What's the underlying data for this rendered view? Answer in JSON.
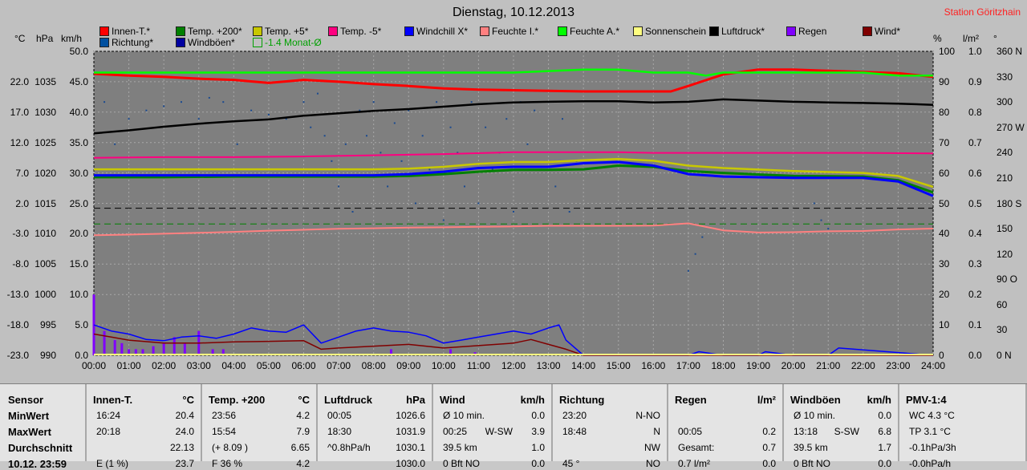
{
  "chart_data": {
    "type": "line",
    "title": "Dienstag, 10.12.2013",
    "station": "Station Göritzhain",
    "x_ticks": [
      "00:00",
      "01:00",
      "02:00",
      "03:00",
      "04:00",
      "05:00",
      "06:00",
      "07:00",
      "08:00",
      "09:00",
      "10:00",
      "11:00",
      "12:00",
      "13:00",
      "14:00",
      "15:00",
      "16:00",
      "17:00",
      "18:00",
      "19:00",
      "20:00",
      "21:00",
      "22:00",
      "23:00",
      "24:00"
    ],
    "axes": {
      "temp": {
        "unit": "°C",
        "range": [
          -23,
          27
        ],
        "ticks": [
          "22.0",
          "17.0",
          "12.0",
          "7.0",
          "2.0",
          "-3.0",
          "-8.0",
          "-13.0",
          "-18.0",
          "-23.0"
        ]
      },
      "pressure": {
        "unit": "hPa",
        "range": [
          990,
          1040
        ],
        "ticks": [
          "1035",
          "1030",
          "1025",
          "1020",
          "1015",
          "1010",
          "1005",
          "1000",
          "995",
          "990"
        ]
      },
      "wind": {
        "unit": "km/h",
        "range": [
          0,
          50
        ],
        "ticks": [
          "50.0",
          "45.0",
          "40.0",
          "35.0",
          "30.0",
          "25.0",
          "20.0",
          "15.0",
          "10.0",
          "5.0",
          "0.0"
        ]
      },
      "humidity": {
        "unit": "%",
        "range": [
          0,
          100
        ],
        "ticks": [
          "100",
          "90",
          "80",
          "70",
          "60",
          "50",
          "40",
          "30",
          "20",
          "10",
          "0"
        ]
      },
      "rain": {
        "unit": "l/m²",
        "range": [
          0,
          1
        ],
        "ticks": [
          "1.0",
          "0.9",
          "0.8",
          "0.7",
          "0.6",
          "0.5",
          "0.4",
          "0.3",
          "0.2",
          "0.1",
          "0.0"
        ]
      },
      "direction": {
        "unit": "°",
        "range": [
          0,
          360
        ],
        "ticks": [
          "360 N",
          "330",
          "300",
          "270 W",
          "240",
          "210",
          "180 S",
          "150",
          "120",
          "90 O",
          "60",
          "30",
          "0 N"
        ]
      }
    },
    "legend": [
      {
        "name": "Innen-T.*",
        "color": "#ff0000"
      },
      {
        "name": "Temp. +200*",
        "color": "#008000"
      },
      {
        "name": "Temp. +5*",
        "color": "#c8c800"
      },
      {
        "name": "Temp. -5*",
        "color": "#ff0080"
      },
      {
        "name": "Windchill X*",
        "color": "#0000ff"
      },
      {
        "name": "Feuchte I.*",
        "color": "#ff8080"
      },
      {
        "name": "Feuchte A.*",
        "color": "#00ff00"
      },
      {
        "name": "Sonnenschein",
        "color": "#ffff80"
      },
      {
        "name": "Luftdruck*",
        "color": "#000000"
      },
      {
        "name": "Regen",
        "color": "#8000ff"
      },
      {
        "name": "Wind*",
        "color": "#800000"
      },
      {
        "name": "Richtung*",
        "color": "#0050a0"
      },
      {
        "name": "Windböen*",
        "color": "#0000a0"
      }
    ],
    "legend_note": "-1.4 Monat-Ø",
    "reference_lines": [
      {
        "axis": "temp",
        "value": 1.2,
        "color": "#000000"
      },
      {
        "axis": "temp",
        "value": -1.4,
        "color": "#008000"
      }
    ],
    "series": [
      {
        "name": "Innen-T.*",
        "axis": "temp",
        "color": "#ff0000",
        "x": [
          0,
          1,
          2,
          3,
          4,
          5,
          6,
          7,
          8,
          9,
          10,
          11,
          12,
          13,
          14,
          15,
          16,
          16.5,
          17,
          18,
          19,
          20,
          21,
          22,
          23,
          24
        ],
        "values": [
          23.3,
          23.0,
          22.8,
          22.5,
          22.3,
          21.8,
          22.3,
          22.0,
          21.6,
          21.3,
          20.9,
          20.7,
          20.6,
          20.5,
          20.4,
          20.4,
          20.4,
          20.4,
          21.3,
          23.2,
          24.0,
          24.0,
          23.8,
          23.6,
          23.4,
          22.8
        ]
      },
      {
        "name": "Feuchte A.*",
        "axis": "humidity",
        "color": "#00ff00",
        "x": [
          0,
          2,
          4,
          6,
          8,
          10,
          12,
          14,
          15,
          16,
          17,
          17.5,
          18,
          20,
          22,
          23,
          24
        ],
        "values": [
          93,
          93,
          93,
          93,
          93,
          93,
          93,
          94,
          94,
          93,
          93,
          92,
          93,
          93,
          93,
          92,
          92
        ]
      },
      {
        "name": "Luftdruck*",
        "axis": "pressure",
        "color": "#000000",
        "x": [
          0,
          1,
          2,
          3,
          4,
          5,
          6,
          7,
          8,
          9,
          10,
          11,
          12,
          13,
          14,
          15,
          16,
          17,
          18,
          19,
          20,
          21,
          22,
          23,
          24
        ],
        "values": [
          1026.5,
          1027.0,
          1027.6,
          1028.1,
          1028.5,
          1028.8,
          1029.4,
          1029.8,
          1030.2,
          1030.5,
          1030.9,
          1031.3,
          1031.6,
          1031.7,
          1031.8,
          1031.8,
          1031.6,
          1031.7,
          1032.1,
          1031.9,
          1031.7,
          1031.6,
          1031.5,
          1031.4,
          1031.2
        ]
      },
      {
        "name": "Temp. -5*",
        "axis": "temp",
        "color": "#ff0080",
        "x": [
          0,
          2,
          4,
          6,
          8,
          10,
          12,
          14,
          15,
          16,
          18,
          20,
          22,
          24
        ],
        "values": [
          9.5,
          9.6,
          9.6,
          9.7,
          9.9,
          10.1,
          10.4,
          10.4,
          10.4,
          10.3,
          10.3,
          10.3,
          10.3,
          10.2
        ]
      },
      {
        "name": "Temp. +5*",
        "axis": "temp",
        "color": "#c8c800",
        "x": [
          0,
          2,
          4,
          6,
          8,
          9,
          10,
          11,
          12,
          13,
          14,
          15,
          16,
          17,
          18,
          20,
          22,
          23,
          24
        ],
        "values": [
          7.6,
          7.6,
          7.6,
          7.6,
          7.6,
          7.7,
          8.0,
          8.5,
          8.8,
          8.8,
          9.1,
          9.3,
          9.0,
          8.2,
          7.8,
          7.3,
          7.0,
          6.5,
          4.7
        ]
      },
      {
        "name": "Temp. +200*",
        "axis": "temp",
        "color": "#008000",
        "x": [
          0,
          2,
          4,
          6,
          8,
          9,
          10,
          11,
          12,
          13,
          14,
          15,
          16,
          17,
          18,
          20,
          22,
          23,
          24
        ],
        "values": [
          6.3,
          6.3,
          6.4,
          6.4,
          6.4,
          6.5,
          6.8,
          7.2,
          7.5,
          7.5,
          7.6,
          8.2,
          8.0,
          7.3,
          7.0,
          6.5,
          6.4,
          5.8,
          3.8
        ]
      },
      {
        "name": "Windchill X*",
        "axis": "temp",
        "color": "#0000ff",
        "x": [
          0,
          2,
          4,
          6,
          8,
          9,
          10,
          11,
          12,
          13,
          14,
          15,
          16,
          17,
          18,
          20,
          22,
          23,
          24
        ],
        "values": [
          6.6,
          6.6,
          6.6,
          6.6,
          6.6,
          6.8,
          7.2,
          7.8,
          8.0,
          8.0,
          8.6,
          8.8,
          8.2,
          6.8,
          6.4,
          6.2,
          6.2,
          5.6,
          3.2
        ]
      },
      {
        "name": "Feuchte I.*",
        "axis": "humidity",
        "color": "#ff8080",
        "x": [
          0,
          1,
          2,
          3,
          4,
          5,
          6,
          7,
          8,
          9,
          10,
          11,
          12,
          13,
          14,
          15,
          16,
          17,
          18,
          19,
          20,
          21,
          22,
          23,
          24
        ],
        "values": [
          39.5,
          39.7,
          40.0,
          40.3,
          40.6,
          41.0,
          41.3,
          41.6,
          41.8,
          42.0,
          42.1,
          42.3,
          42.4,
          42.6,
          42.6,
          42.6,
          42.7,
          43.4,
          41.1,
          40.4,
          40.5,
          40.8,
          40.9,
          41.4,
          41.7
        ]
      },
      {
        "name": "Windböen*",
        "axis": "wind",
        "color": "#0000ff",
        "x": [
          0,
          0.5,
          1,
          1.5,
          2,
          2.5,
          3,
          3.5,
          4,
          4.5,
          5,
          5.5,
          6,
          6.5,
          7,
          7.5,
          8,
          8.5,
          9,
          9.5,
          10,
          10.5,
          11,
          11.5,
          12,
          12.5,
          13,
          13.3,
          13.5,
          14,
          15,
          17,
          17.3,
          18,
          19,
          19.2,
          20,
          21,
          21.3,
          24
        ],
        "values": [
          5.0,
          4.0,
          3.5,
          2.6,
          2.4,
          3.0,
          3.2,
          2.8,
          3.5,
          4.5,
          4.0,
          3.8,
          5.0,
          2.0,
          3.0,
          4.0,
          4.5,
          4.0,
          3.8,
          3.2,
          2.0,
          2.5,
          3.0,
          3.5,
          4.0,
          3.5,
          4.5,
          5.0,
          2.5,
          0.0,
          0.0,
          0.0,
          0.6,
          0.0,
          0.0,
          0.6,
          0.0,
          0.0,
          1.2,
          0.0
        ]
      },
      {
        "name": "Wind*",
        "axis": "wind",
        "color": "#800000",
        "x": [
          0,
          0.5,
          1,
          2,
          3,
          4,
          5,
          6,
          6.5,
          7,
          8,
          9,
          10,
          11,
          12,
          12.5,
          13,
          13.5,
          14,
          24
        ],
        "values": [
          3.5,
          3.0,
          2.5,
          2.0,
          2.0,
          2.2,
          2.3,
          2.4,
          1.0,
          1.2,
          1.5,
          1.8,
          1.2,
          1.6,
          2.0,
          2.6,
          1.8,
          1.0,
          0.0,
          0.0
        ]
      }
    ],
    "rain_bars": {
      "axis": "rain",
      "x": [
        0.0,
        0.3,
        0.6,
        0.8,
        1.0,
        1.2,
        1.4,
        1.7,
        2.0,
        2.3,
        2.6,
        3.0,
        3.4,
        3.7,
        8.5,
        10.2,
        10.9
      ],
      "values": [
        0.2,
        0.08,
        0.05,
        0.04,
        0.02,
        0.02,
        0.02,
        0.03,
        0.04,
        0.06,
        0.04,
        0.08,
        0.02,
        0.02,
        0.02,
        0.02,
        0.01
      ]
    },
    "direction_points": {
      "axis": "direction",
      "x": [
        0.3,
        0.6,
        1.0,
        1.5,
        2.0,
        2.5,
        3.0,
        3.3,
        3.7,
        4.1,
        4.5,
        5.0,
        5.5,
        6.0,
        6.2,
        6.4,
        6.6,
        6.8,
        7.0,
        7.2,
        7.4,
        7.6,
        7.8,
        8.0,
        8.2,
        8.4,
        8.6,
        8.8,
        9.0,
        9.2,
        9.4,
        9.6,
        9.8,
        10.0,
        10.2,
        10.4,
        10.6,
        10.8,
        11.0,
        11.2,
        11.4,
        11.6,
        11.8,
        12.0,
        12.2,
        12.4,
        12.6,
        12.8,
        13.0,
        13.2,
        13.4,
        13.6,
        13.8,
        17.0,
        17.2,
        17.4,
        20.6,
        20.8,
        21.0
      ],
      "values": [
        300,
        250,
        280,
        290,
        295,
        300,
        280,
        305,
        300,
        250,
        290,
        285,
        280,
        300,
        270,
        310,
        260,
        230,
        200,
        250,
        170,
        290,
        260,
        300,
        240,
        200,
        275,
        230,
        290,
        180,
        260,
        220,
        300,
        160,
        270,
        240,
        200,
        300,
        180,
        270,
        220,
        240,
        280,
        170,
        300,
        250,
        290,
        220,
        300,
        200,
        280,
        170,
        230,
        100,
        120,
        140,
        180,
        160,
        150
      ]
    },
    "table": [
      {
        "header": "Sensor",
        "unit": "",
        "rows": [
          [
            "MinWert",
            "",
            ""
          ],
          [
            "MaxWert",
            "",
            ""
          ],
          [
            "Durchschnitt",
            "",
            ""
          ],
          [
            "10.12. 23:59",
            "",
            ""
          ]
        ]
      },
      {
        "header": "Innen-T.",
        "unit": "°C",
        "rows": [
          [
            "16:24",
            "",
            "20.4"
          ],
          [
            "20:18",
            "",
            "24.0"
          ],
          [
            "",
            "",
            "22.13"
          ],
          [
            "E (1 %)",
            "",
            "23.7"
          ]
        ]
      },
      {
        "header": "Temp. +200",
        "unit": "°C",
        "rows": [
          [
            "23:56",
            "",
            "4.2"
          ],
          [
            "15:54",
            "",
            "7.9"
          ],
          [
            "(+ 8.09 )",
            "",
            "6.65"
          ],
          [
            "F 36 %",
            "",
            "4.2"
          ]
        ]
      },
      {
        "header": "Luftdruck",
        "unit": "hPa",
        "rows": [
          [
            "00:05",
            "",
            "1026.6"
          ],
          [
            "18:30",
            "",
            "1031.9"
          ],
          [
            "^0.8hPa/h",
            "",
            "1030.1"
          ],
          [
            "",
            "",
            "1030.0"
          ]
        ]
      },
      {
        "header": "Wind",
        "unit": "km/h",
        "rows": [
          [
            "Ø 10 min.",
            "",
            "0.0"
          ],
          [
            "00:25",
            "W-SW",
            "3.9"
          ],
          [
            "39.5 km",
            "",
            "1.0"
          ],
          [
            "0 Bft NO",
            "",
            "0.0"
          ]
        ]
      },
      {
        "header": "Richtung",
        "unit": "",
        "rows": [
          [
            "23:20",
            "",
            "N-NO"
          ],
          [
            "18:48",
            "",
            "N"
          ],
          [
            "",
            "",
            "NW"
          ],
          [
            "45 °",
            "",
            "NO"
          ]
        ]
      },
      {
        "header": "Regen",
        "unit": "l/m²",
        "rows": [
          [
            "",
            "",
            ""
          ],
          [
            "00:05",
            "",
            "0.2"
          ],
          [
            "Gesamt:",
            "",
            "0.7"
          ],
          [
            "0.7 l/m²",
            "",
            "0.0"
          ]
        ]
      },
      {
        "header": "Windböen",
        "unit": "km/h",
        "rows": [
          [
            "Ø 10 min.",
            "",
            "0.0"
          ],
          [
            "13:18",
            "S-SW",
            "6.8"
          ],
          [
            "39.5 km",
            "",
            "1.7"
          ],
          [
            "0 Bft NO",
            "",
            "0.0"
          ]
        ]
      },
      {
        "header": "PMV-1:4",
        "unit": "",
        "rows": [
          [
            "WC 4.3 °C",
            "",
            ""
          ],
          [
            "TP 3.1 °C",
            "",
            ""
          ],
          [
            "-0.1hPa/3h",
            "",
            ""
          ],
          [
            "-0.0hPa/h",
            "",
            ""
          ]
        ]
      }
    ]
  }
}
